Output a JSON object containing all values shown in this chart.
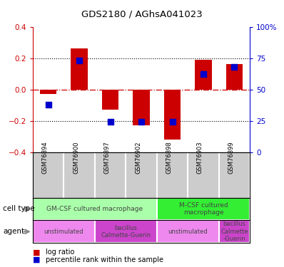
{
  "title": "GDS2180 / AGhsA041023",
  "samples": [
    "GSM76894",
    "GSM76900",
    "GSM76897",
    "GSM76902",
    "GSM76898",
    "GSM76903",
    "GSM76899"
  ],
  "log_ratio": [
    -0.03,
    0.26,
    -0.13,
    -0.23,
    -0.32,
    0.19,
    0.16
  ],
  "percentile_rank": [
    38,
    73,
    24,
    24,
    24,
    62,
    68
  ],
  "ylim": [
    -0.4,
    0.4
  ],
  "right_ylim": [
    0,
    100
  ],
  "right_yticks": [
    0,
    25,
    50,
    75,
    100
  ],
  "right_yticklabels": [
    "0",
    "25",
    "50",
    "75",
    "100%"
  ],
  "left_yticks": [
    -0.4,
    -0.2,
    0.0,
    0.2,
    0.4
  ],
  "dotted_lines": [
    -0.2,
    0.0,
    0.2
  ],
  "bar_color": "#cc0000",
  "dot_color": "#0000cc",
  "bar_width": 0.55,
  "dot_size": 30,
  "cell_type_groups": [
    {
      "label": "GM-CSF cultured macrophage",
      "start": 0,
      "end": 4,
      "color": "#aaffaa"
    },
    {
      "label": "M-CSF cultured\nmacrophage",
      "start": 4,
      "end": 7,
      "color": "#33ee33"
    }
  ],
  "agent_groups": [
    {
      "label": "unstimulated",
      "start": 0,
      "end": 2,
      "color": "#ee88ee"
    },
    {
      "label": "bacillus\nCalmette-Guerin",
      "start": 2,
      "end": 4,
      "color": "#cc44cc"
    },
    {
      "label": "unstimulated",
      "start": 4,
      "end": 6,
      "color": "#ee88ee"
    },
    {
      "label": "bacillus\nCalmette\n-Guerin",
      "start": 6,
      "end": 7,
      "color": "#cc44cc"
    }
  ],
  "legend_items": [
    {
      "label": "log ratio",
      "color": "#cc0000"
    },
    {
      "label": "percentile rank within the sample",
      "color": "#0000cc"
    }
  ],
  "bg_color": "#ffffff",
  "sample_box_color": "#cccccc",
  "zero_line_color": "#cc0000",
  "grid_color": "#000000",
  "left_label_color": "#cc0000",
  "right_label_color": "#0000cc"
}
